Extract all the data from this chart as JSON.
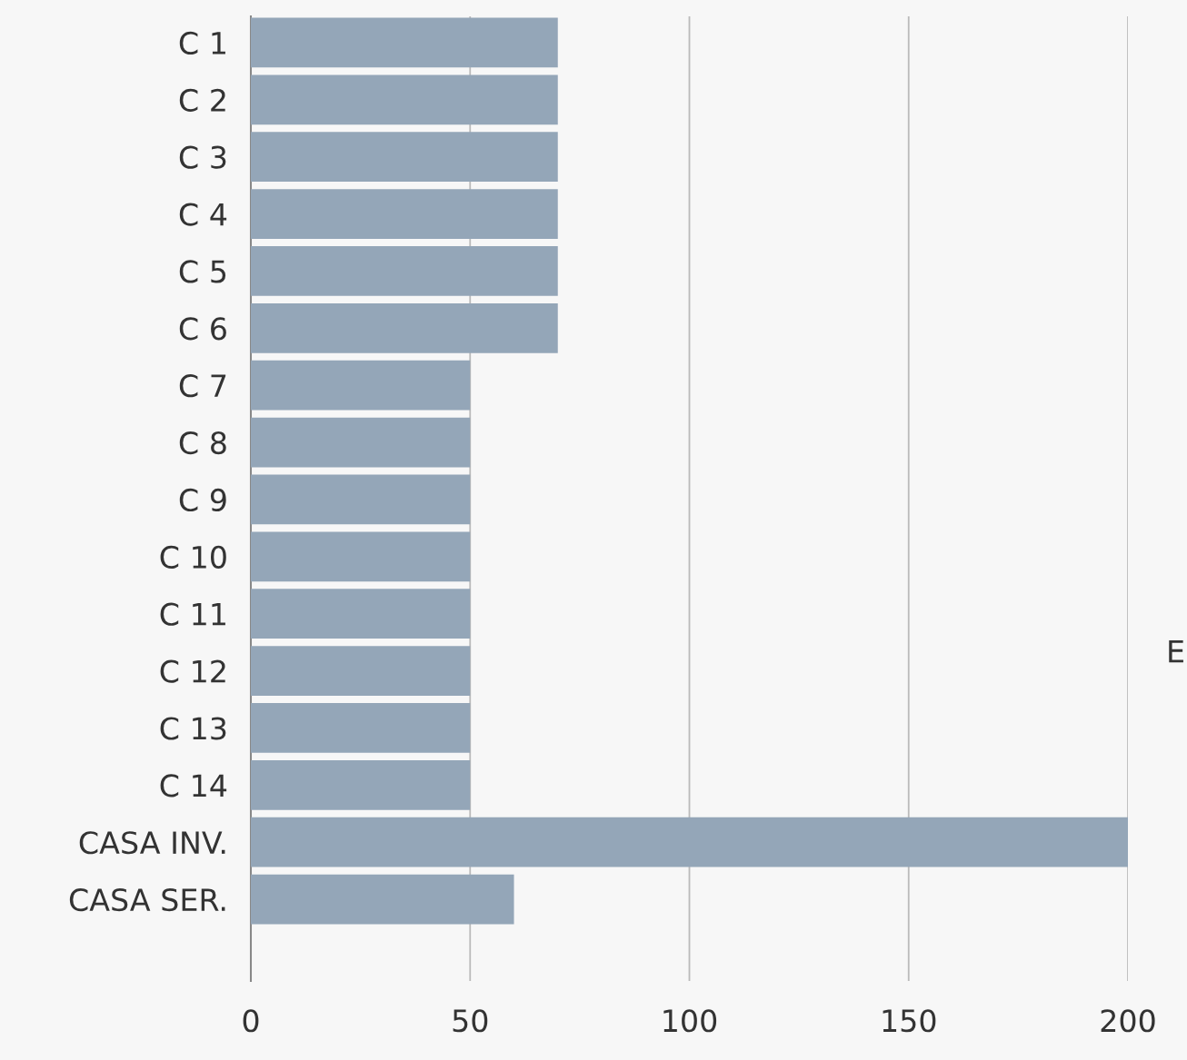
{
  "chart_data": {
    "type": "bar",
    "orientation": "horizontal",
    "categories": [
      "C 1",
      "C 2",
      "C 3",
      "C 4",
      "C 5",
      "C 6",
      "C 7",
      "C 8",
      "C 9",
      "C 10",
      "C 11",
      "C 12",
      "C 13",
      "C 14",
      "CASA INV.",
      "CASA SER."
    ],
    "values": [
      70,
      70,
      70,
      70,
      70,
      70,
      50,
      50,
      50,
      50,
      50,
      50,
      50,
      50,
      200,
      60
    ],
    "color": "#94a6b8",
    "xlim": [
      0,
      200
    ],
    "xticks": [
      0,
      50,
      100,
      150,
      200
    ],
    "grid": "x",
    "annotations": [
      "E"
    ]
  }
}
